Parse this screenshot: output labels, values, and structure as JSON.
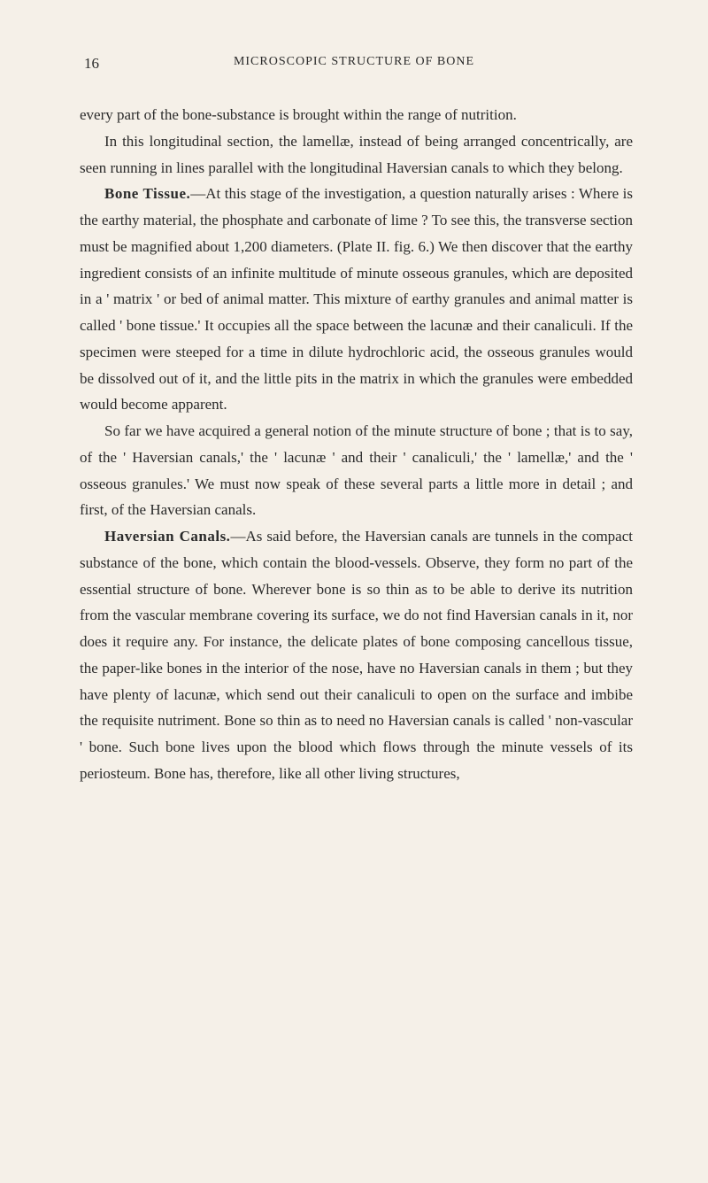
{
  "page": {
    "number": "16",
    "runningHeader": "MICROSCOPIC STRUCTURE OF BONE",
    "background_color": "#f5f0e8",
    "text_color": "#2a2a2a",
    "font_family": "Georgia, 'Times New Roman', serif",
    "body_fontsize": 17,
    "line_height": 1.75
  },
  "paragraphs": {
    "p1": "every part of the bone-substance is brought within the range of nutrition.",
    "p2": "In this longitudinal section, the lamellæ, instead of being arranged concentrically, are seen running in lines parallel with the longitudinal Haversian canals to which they belong.",
    "p3_heading": "Bone Tissue.",
    "p3_body": "—At this stage of the investigation, a question naturally arises : Where is the earthy material, the phosphate and carbonate of lime ? To see this, the transverse section must be magnified about 1,200 diameters. (Plate II. fig. 6.) We then discover that the earthy ingredient consists of an infinite multitude of minute osseous granules, which are deposited in a ' matrix ' or bed of animal matter. This mixture of earthy granules and animal matter is called ' bone tissue.' It occupies all the space between the lacunæ and their canaliculi. If the specimen were steeped for a time in dilute hydrochloric acid, the osseous granules would be dissolved out of it, and the little pits in the matrix in which the granules were embedded would become apparent.",
    "p4": "So far we have acquired a general notion of the minute structure of bone ; that is to say, of the ' Haversian canals,' the ' lacunæ ' and their ' canaliculi,' the ' lamellæ,' and the ' osseous granules.' We must now speak of these several parts a little more in detail ; and first, of the Haversian canals.",
    "p5_heading": "Haversian Canals.",
    "p5_body": "—As said before, the Haversian canals are tunnels in the compact substance of the bone, which contain the blood-vessels. Observe, they form no part of the essential structure of bone. Wherever bone is so thin as to be able to derive its nutrition from the vascular membrane covering its surface, we do not find Haversian canals in it, nor does it require any. For instance, the delicate plates of bone composing cancellous tissue, the paper-like bones in the interior of the nose, have no Haversian canals in them ; but they have plenty of lacunæ, which send out their canaliculi to open on the surface and imbibe the requisite nutriment. Bone so thin as to need no Haversian canals is called ' non-vascular ' bone. Such bone lives upon the blood which flows through the minute vessels of its periosteum. Bone has, therefore, like all other living structures,"
  }
}
